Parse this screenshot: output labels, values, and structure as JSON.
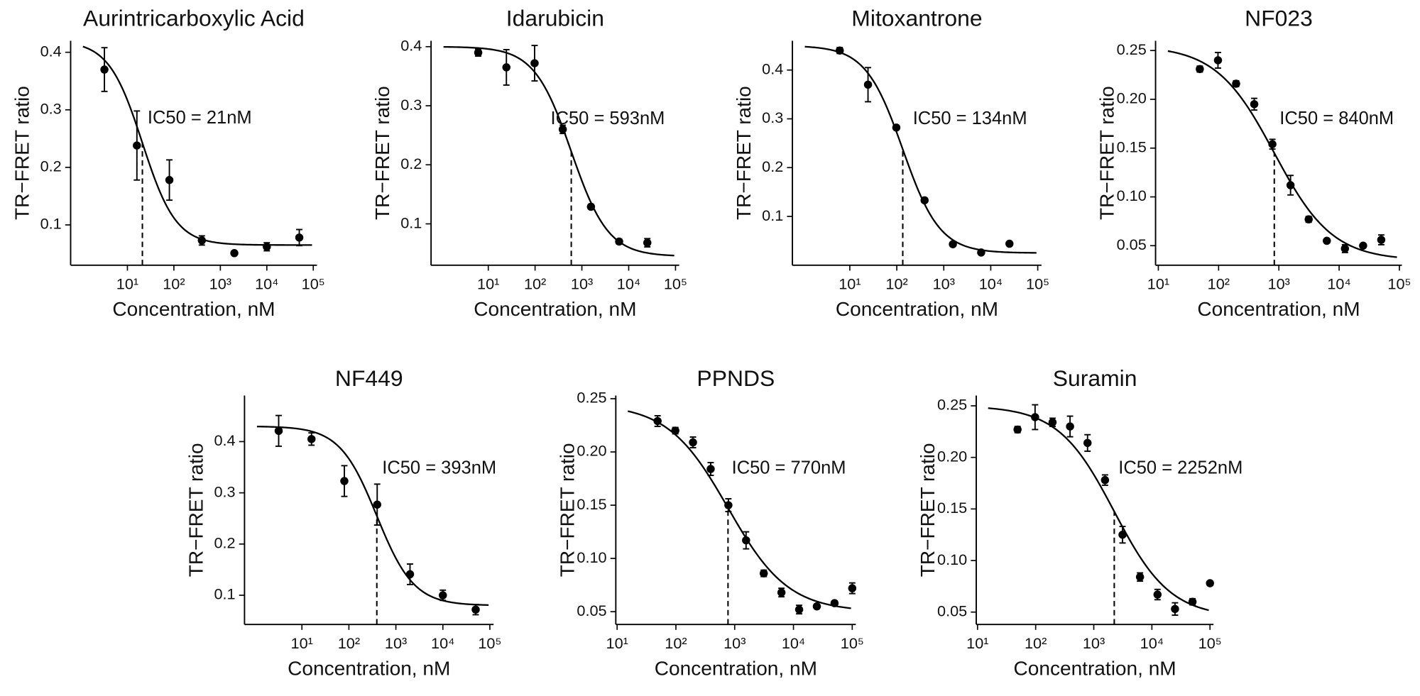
{
  "chart_data": [
    {
      "type": "scatter",
      "title": "Aurintricarboxylic Acid",
      "xlabel": "Concentration, nM",
      "ylabel": "TR−FRET ratio",
      "annotation": "IC50 = 21nM",
      "x": [
        3.2,
        16,
        80,
        400,
        2000,
        10000,
        50000
      ],
      "values": [
        0.37,
        0.238,
        0.178,
        0.073,
        0.051,
        0.062,
        0.078
      ],
      "errors": [
        0.038,
        0.06,
        0.035,
        0.008,
        0.003,
        0.007,
        0.014
      ],
      "fit": {
        "top": 0.42,
        "bottom": 0.065,
        "ic50": 21,
        "hill": 1.2
      },
      "xscale": "log",
      "xlim": [
        0.6,
        120000
      ],
      "ylim": [
        0.03,
        0.42
      ],
      "xticks": [
        {
          "value": 10,
          "label": "10¹"
        },
        {
          "value": 100,
          "label": "10²"
        },
        {
          "value": 1000,
          "label": "10³"
        },
        {
          "value": 10000,
          "label": "10⁴"
        },
        {
          "value": 100000,
          "label": "10⁵"
        }
      ],
      "yticks": [
        0.1,
        0.2,
        0.3,
        0.4
      ],
      "color": "#000000"
    },
    {
      "type": "scatter",
      "title": "Idarubicin",
      "xlabel": "Concentration, nM",
      "ylabel": "TR−FRET ratio",
      "annotation": "IC50 = 593nM",
      "x": [
        6.1,
        24.4,
        97.7,
        390.6,
        1562.5,
        6250,
        25000
      ],
      "values": [
        0.39,
        0.365,
        0.372,
        0.26,
        0.129,
        0.07,
        0.068
      ],
      "errors": [
        0.006,
        0.03,
        0.03,
        0.007,
        0.004,
        0.004,
        0.007
      ],
      "fit": {
        "top": 0.4,
        "bottom": 0.045,
        "ic50": 593,
        "hill": 1.1
      },
      "xscale": "log",
      "xlim": [
        0.6,
        120000
      ],
      "ylim": [
        0.03,
        0.41
      ],
      "xticks": [
        {
          "value": 10,
          "label": "10¹"
        },
        {
          "value": 100,
          "label": "10²"
        },
        {
          "value": 1000,
          "label": "10³"
        },
        {
          "value": 10000,
          "label": "10⁴"
        },
        {
          "value": 100000,
          "label": "10⁵"
        }
      ],
      "yticks": [
        0.1,
        0.2,
        0.3,
        0.4
      ],
      "color": "#000000"
    },
    {
      "type": "scatter",
      "title": "Mitoxantrone",
      "xlabel": "Concentration, nM",
      "ylabel": "TR−FRET ratio",
      "annotation": "IC50 = 134nM",
      "x": [
        6.1,
        24.4,
        97.7,
        390.6,
        1562.5,
        6250,
        25000
      ],
      "values": [
        0.44,
        0.37,
        0.282,
        0.133,
        0.043,
        0.026,
        0.044
      ],
      "errors": [
        0.006,
        0.035,
        0.004,
        0.004,
        0.003,
        0.003,
        0.003
      ],
      "fit": {
        "top": 0.45,
        "bottom": 0.025,
        "ic50": 134,
        "hill": 1.1
      },
      "xscale": "log",
      "xlim": [
        0.6,
        120000
      ],
      "ylim": [
        0,
        0.46
      ],
      "xticks": [
        {
          "value": 10,
          "label": "10¹"
        },
        {
          "value": 100,
          "label": "10²"
        },
        {
          "value": 1000,
          "label": "10³"
        },
        {
          "value": 10000,
          "label": "10⁴"
        },
        {
          "value": 100000,
          "label": "10⁵"
        }
      ],
      "yticks": [
        0.1,
        0.2,
        0.3,
        0.4
      ],
      "color": "#000000"
    },
    {
      "type": "scatter",
      "title": "NF023",
      "xlabel": "Concentration, nM",
      "ylabel": "TR−FRET ratio",
      "annotation": "IC50 = 840nM",
      "x": [
        48.8,
        97.7,
        195.3,
        390.6,
        781.3,
        1562.5,
        3125,
        6250,
        12500,
        25000,
        50000
      ],
      "values": [
        0.231,
        0.24,
        0.216,
        0.195,
        0.154,
        0.112,
        0.077,
        0.055,
        0.047,
        0.05,
        0.056
      ],
      "errors": [
        0.003,
        0.008,
        0.003,
        0.006,
        0.005,
        0.01,
        0.003,
        0.002,
        0.004,
        0.002,
        0.005
      ],
      "fit": {
        "top": 0.255,
        "bottom": 0.035,
        "ic50": 840,
        "hill": 0.9
      },
      "xscale": "log",
      "xlim": [
        9,
        110000
      ],
      "ylim": [
        0.03,
        0.26
      ],
      "xticks": [
        {
          "value": 10,
          "label": "10¹"
        },
        {
          "value": 100,
          "label": "10²"
        },
        {
          "value": 1000,
          "label": "10³"
        },
        {
          "value": 10000,
          "label": "10⁴"
        },
        {
          "value": 100000,
          "label": "10⁵"
        }
      ],
      "yticks": [
        0.05,
        {
          "value": 0.1,
          "label": "0.10"
        },
        0.15,
        {
          "value": 0.2,
          "label": "0.20"
        },
        0.25
      ],
      "color": "#000000"
    },
    {
      "type": "scatter",
      "title": "NF449",
      "xlabel": "Concentration, nM",
      "ylabel": "TR−FRET ratio",
      "annotation": "IC50 = 393nM",
      "x": [
        3.2,
        16,
        80,
        400,
        2000,
        10000,
        50000
      ],
      "values": [
        0.421,
        0.405,
        0.323,
        0.277,
        0.141,
        0.1,
        0.072
      ],
      "errors": [
        0.03,
        0.012,
        0.03,
        0.04,
        0.02,
        0.01,
        0.01
      ],
      "fit": {
        "top": 0.43,
        "bottom": 0.08,
        "ic50": 393,
        "hill": 1.1
      },
      "xscale": "log",
      "xlim": [
        0.6,
        120000
      ],
      "ylim": [
        0.043,
        0.49
      ],
      "xticks": [
        {
          "value": 10,
          "label": "10¹"
        },
        {
          "value": 100,
          "label": "10²"
        },
        {
          "value": 1000,
          "label": "10³"
        },
        {
          "value": 10000,
          "label": "10⁴"
        },
        {
          "value": 100000,
          "label": "10⁵"
        }
      ],
      "yticks": [
        0.1,
        0.2,
        0.3,
        0.4
      ],
      "color": "#000000"
    },
    {
      "type": "scatter",
      "title": "PPNDS",
      "xlabel": "Concentration, nM",
      "ylabel": "TR−FRET ratio",
      "annotation": "IC50 = 770nM",
      "x": [
        48.8,
        97.7,
        195.3,
        390.6,
        781.3,
        1562.5,
        3125,
        6250,
        12500,
        25000,
        50000,
        100000
      ],
      "values": [
        0.229,
        0.22,
        0.209,
        0.184,
        0.15,
        0.117,
        0.086,
        0.068,
        0.052,
        0.055,
        0.058,
        0.072
      ],
      "errors": [
        0.005,
        0.003,
        0.005,
        0.006,
        0.006,
        0.008,
        0.003,
        0.004,
        0.004,
        0.002,
        0.002,
        0.005
      ],
      "fit": {
        "top": 0.245,
        "bottom": 0.05,
        "ic50": 770,
        "hill": 0.85
      },
      "xscale": "log",
      "xlim": [
        9.5,
        115000
      ],
      "ylim": [
        0.038,
        0.253
      ],
      "xticks": [
        {
          "value": 10,
          "label": "10¹"
        },
        {
          "value": 100,
          "label": "10²"
        },
        {
          "value": 1000,
          "label": "10³"
        },
        {
          "value": 10000,
          "label": "10⁴"
        },
        {
          "value": 100000,
          "label": "10⁵"
        }
      ],
      "yticks": [
        0.05,
        {
          "value": 0.1,
          "label": "0.10"
        },
        0.15,
        {
          "value": 0.2,
          "label": "0.20"
        },
        0.25
      ],
      "color": "#000000"
    },
    {
      "type": "scatter",
      "title": "Suramin",
      "xlabel": "Concentration, nM",
      "ylabel": "TR−FRET ratio",
      "annotation": "IC50 = 2252nM",
      "x": [
        48.8,
        97.7,
        195.3,
        390.6,
        781.3,
        1562.5,
        3125,
        6250,
        12500,
        25000,
        50000,
        100000
      ],
      "values": [
        0.227,
        0.239,
        0.234,
        0.23,
        0.214,
        0.178,
        0.125,
        0.084,
        0.067,
        0.053,
        0.06,
        0.078
      ],
      "errors": [
        0.003,
        0.012,
        0.004,
        0.01,
        0.008,
        0.005,
        0.008,
        0.004,
        0.005,
        0.006,
        0.003,
        0.002
      ],
      "fit": {
        "top": 0.25,
        "bottom": 0.045,
        "ic50": 2252,
        "hill": 0.9
      },
      "xscale": "log",
      "xlim": [
        9.5,
        115000
      ],
      "ylim": [
        0.038,
        0.26
      ],
      "xticks": [
        {
          "value": 10,
          "label": "10¹"
        },
        {
          "value": 100,
          "label": "10²"
        },
        {
          "value": 1000,
          "label": "10³"
        },
        {
          "value": 10000,
          "label": "10⁴"
        },
        {
          "value": 100000,
          "label": "10⁵"
        }
      ],
      "yticks": [
        0.05,
        {
          "value": 0.1,
          "label": "0.10"
        },
        0.15,
        {
          "value": 0.2,
          "label": "0.20"
        },
        0.25
      ],
      "color": "#000000"
    }
  ]
}
